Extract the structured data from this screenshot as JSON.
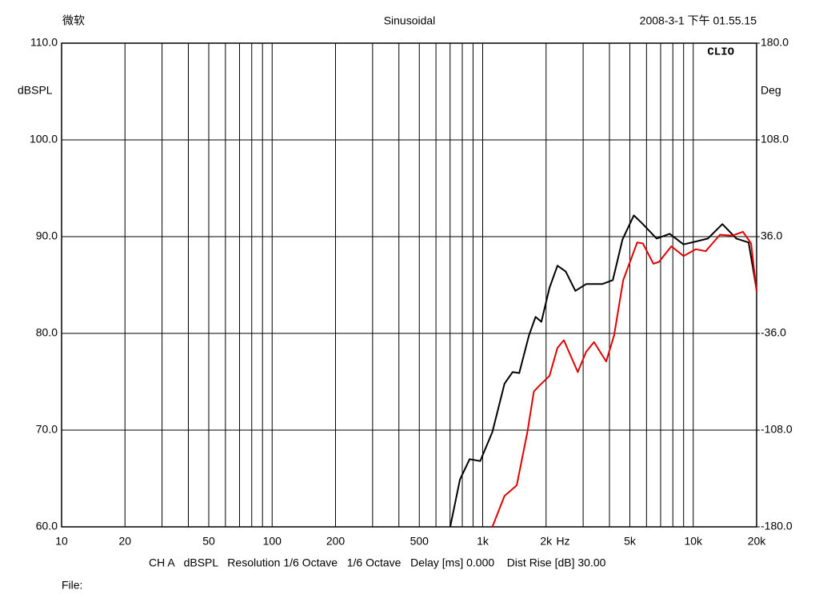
{
  "chart_data": {
    "type": "line",
    "title": "Sinusoidal",
    "header_left": "微软",
    "timestamp": "2008-3-1 下午 01.55.15",
    "brand": "CLIO",
    "y_label": "dBSPL",
    "y2_label": "Deg",
    "x_label": "Hz",
    "footer": "CH A   dBSPL   Resolution 1/6 Octave   1/6 Octave   Delay [ms] 0.000    Dist Rise [dB] 30.00",
    "file_label": "File:",
    "x_log": true,
    "grid": true,
    "xlim": [
      10,
      20000
    ],
    "ylim": [
      60,
      110
    ],
    "y2lim": [
      -180,
      180
    ],
    "xticks": [
      10,
      20,
      50,
      100,
      200,
      500,
      {
        "value": 1000,
        "label": "1k"
      },
      {
        "value": 2000,
        "label": "2k"
      },
      {
        "value": 5000,
        "label": "5k"
      },
      {
        "value": 10000,
        "label": "10k"
      },
      {
        "value": 20000,
        "label": "20k"
      }
    ],
    "x_minor_ticks": [
      30,
      40,
      60,
      70,
      80,
      90,
      300,
      400,
      600,
      700,
      800,
      900,
      3000,
      4000,
      6000,
      7000,
      8000,
      9000
    ],
    "yticks": [
      {
        "value": 60,
        "label": "60.0"
      },
      {
        "value": 70,
        "label": "70.0"
      },
      {
        "value": 80,
        "label": "80.0"
      },
      {
        "value": 90,
        "label": "90.0"
      },
      {
        "value": 100,
        "label": "100.0"
      },
      {
        "value": 110,
        "label": "110.0"
      }
    ],
    "y2ticks": [
      {
        "value": -180,
        "label": "-180.0"
      },
      {
        "value": -108,
        "label": "-108.0"
      },
      {
        "value": -36,
        "label": "-36.0"
      },
      {
        "value": 36,
        "label": "36.0"
      },
      {
        "value": 108,
        "label": "108.0"
      },
      {
        "value": 180,
        "label": "180.0"
      }
    ],
    "series": [
      {
        "color": "#000000",
        "x": [
          701,
          780,
          867,
          973,
          1112,
          1270,
          1387,
          1491,
          1660,
          1782,
          1900,
          2075,
          2266,
          2480,
          2756,
          3100,
          3698,
          4150,
          4612,
          5225,
          5765,
          6700,
          7730,
          8990,
          10280,
          11730,
          13760,
          16030,
          18320,
          20000
        ],
        "values": [
          60,
          64.9,
          67.0,
          66.8,
          69.8,
          74.8,
          76.0,
          75.9,
          79.8,
          81.7,
          81.2,
          84.7,
          87.0,
          86.4,
          84.4,
          85.1,
          85.1,
          85.5,
          89.7,
          92.2,
          91.3,
          89.8,
          90.3,
          89.2,
          89.5,
          89.8,
          91.3,
          89.8,
          89.4,
          84.5
        ]
      },
      {
        "color": "#e00000",
        "x": [
          1112,
          1270,
          1452,
          1630,
          1750,
          1860,
          2075,
          2266,
          2430,
          2830,
          3100,
          3380,
          3860,
          4210,
          4650,
          5420,
          5765,
          6470,
          6880,
          7870,
          8990,
          10280,
          11460,
          13400,
          15310,
          17220,
          18830,
          20000
        ],
        "values": [
          60,
          63.2,
          64.3,
          69.8,
          74.0,
          74.6,
          75.6,
          78.5,
          79.3,
          76.0,
          78.1,
          79.1,
          77.1,
          79.8,
          85.5,
          89.4,
          89.3,
          87.2,
          87.4,
          89.0,
          88.0,
          88.7,
          88.5,
          90.2,
          90.1,
          90.5,
          89.3,
          84.3
        ]
      }
    ]
  }
}
